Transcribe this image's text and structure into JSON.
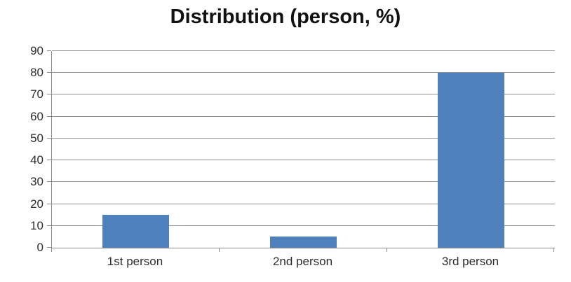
{
  "chart_data": {
    "type": "bar",
    "title": "Distribution (person, %)",
    "categories": [
      "1st person",
      "2nd person",
      "3rd person"
    ],
    "values": [
      15,
      5,
      80
    ],
    "xlabel": "",
    "ylabel": "",
    "ylim": [
      0,
      90
    ],
    "ytick_step": 10,
    "ytick_labels": [
      "0",
      "10",
      "20",
      "30",
      "40",
      "50",
      "60",
      "70",
      "80",
      "90"
    ],
    "grid": true,
    "legend": false,
    "bar_color": "#4F81BD",
    "gridline_color": "#929292",
    "axis_color": "#8a8a8a",
    "title_color": "#111111",
    "label_color": "#2e2e2e"
  }
}
